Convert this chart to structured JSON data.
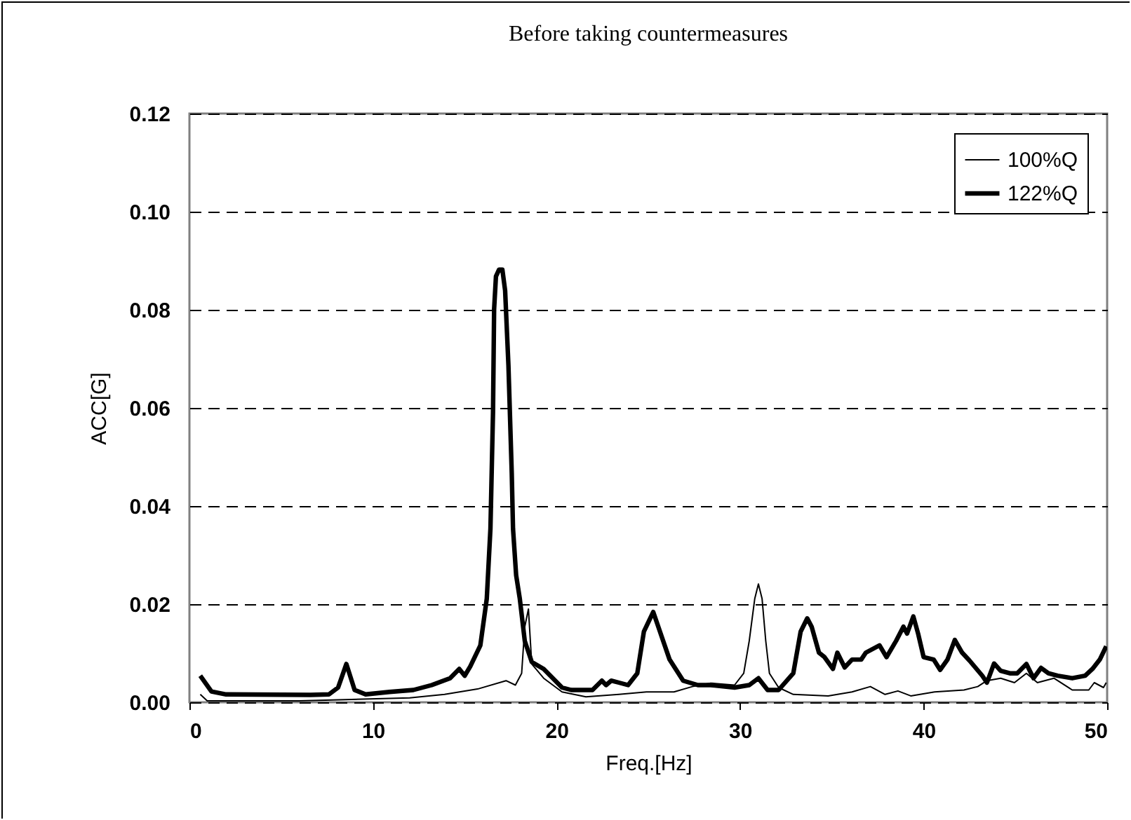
{
  "chart_data": {
    "type": "line",
    "title": "Before taking countermeasures",
    "xlabel": "Freq.[Hz]",
    "ylabel": "ACC[G]",
    "xlim": [
      0,
      50
    ],
    "xticks": [
      0,
      10,
      20,
      30,
      40,
      50
    ],
    "ylim": [
      0,
      0.12
    ],
    "yticks": [
      {
        "value": 0,
        "label": "0.00"
      },
      {
        "value": 0.02,
        "label": "0.02"
      },
      {
        "value": 0.04,
        "label": "0.04"
      },
      {
        "value": 0.06,
        "label": "0.06"
      },
      {
        "value": 0.08,
        "label": "0.08"
      },
      {
        "value": 0.1,
        "label": "0.10"
      },
      {
        "value": 0.12,
        "label": "0.12"
      }
    ],
    "grid": "y",
    "legend": "top right",
    "marker": "none",
    "line_style": "solid",
    "series": [
      {
        "name": "100%Q",
        "color": "#000000",
        "x": [
          0.59,
          0.97,
          6.0,
          12.0,
          13.9,
          15.7,
          17.25,
          17.76,
          18.1,
          18.27,
          18.47,
          18.65,
          19.3,
          20.3,
          21.6,
          23.4,
          24.9,
          26.4,
          27.4,
          28.4,
          29.7,
          30.2,
          30.5,
          30.8,
          31.0,
          31.2,
          31.4,
          31.6,
          32.1,
          32.9,
          34.8,
          36.1,
          37.1,
          37.9,
          38.6,
          39.3,
          40.6,
          42.2,
          42.95,
          43.45,
          44.2,
          44.95,
          45.6,
          46.2,
          47.1,
          48.1,
          49.0,
          49.3,
          49.8,
          49.95
        ],
        "values": [
          0.0016,
          0.0003,
          0.0003,
          0.0009,
          0.0016,
          0.0027,
          0.0044,
          0.0035,
          0.0059,
          0.0154,
          0.019,
          0.0078,
          0.0049,
          0.0021,
          0.0011,
          0.0016,
          0.0021,
          0.0021,
          0.0032,
          0.0039,
          0.0035,
          0.0059,
          0.0125,
          0.0211,
          0.0241,
          0.0211,
          0.0125,
          0.0059,
          0.003,
          0.0016,
          0.0013,
          0.0021,
          0.0032,
          0.0016,
          0.0023,
          0.0013,
          0.0021,
          0.0025,
          0.0032,
          0.0044,
          0.0049,
          0.004,
          0.0059,
          0.004,
          0.0049,
          0.0025,
          0.0025,
          0.004,
          0.003,
          0.004
        ]
      },
      {
        "name": "122%Q",
        "color": "#000000",
        "x": [
          0.59,
          1.2,
          2.0,
          6.6,
          7.6,
          8.1,
          8.55,
          9.0,
          9.6,
          10.9,
          12.2,
          13.2,
          14.2,
          14.7,
          15.0,
          15.3,
          15.85,
          16.2,
          16.4,
          16.54,
          16.6,
          16.7,
          16.87,
          17.05,
          17.2,
          17.38,
          17.56,
          17.63,
          17.8,
          18.0,
          18.27,
          18.65,
          19.3,
          19.8,
          20.3,
          20.8,
          21.96,
          22.47,
          22.7,
          22.98,
          23.4,
          23.9,
          24.4,
          24.76,
          25.27,
          26.16,
          26.9,
          27.7,
          28.4,
          29.7,
          30.5,
          31.0,
          31.5,
          32.1,
          32.9,
          33.3,
          33.66,
          33.9,
          34.3,
          34.6,
          35.06,
          35.3,
          35.7,
          36.1,
          36.6,
          36.85,
          37.6,
          37.98,
          38.5,
          38.9,
          39.1,
          39.44,
          39.7,
          40.0,
          40.55,
          40.9,
          41.3,
          41.7,
          42.1,
          42.5,
          43.2,
          43.45,
          43.84,
          44.2,
          44.7,
          45.1,
          45.6,
          45.99,
          46.4,
          46.8,
          47.3,
          48.1,
          48.8,
          49.2,
          49.6,
          49.95
        ],
        "values": [
          0.0054,
          0.0022,
          0.0016,
          0.0015,
          0.0016,
          0.003,
          0.0078,
          0.0025,
          0.0016,
          0.0021,
          0.0025,
          0.0035,
          0.0049,
          0.0068,
          0.0054,
          0.0073,
          0.0116,
          0.0211,
          0.0354,
          0.0591,
          0.0801,
          0.0868,
          0.0882,
          0.0882,
          0.0839,
          0.0687,
          0.0468,
          0.0354,
          0.0259,
          0.0211,
          0.0125,
          0.0082,
          0.0068,
          0.0049,
          0.003,
          0.0025,
          0.0025,
          0.0044,
          0.0035,
          0.0044,
          0.004,
          0.0035,
          0.0059,
          0.0144,
          0.0184,
          0.0087,
          0.0044,
          0.0035,
          0.0035,
          0.003,
          0.0035,
          0.0049,
          0.0025,
          0.0025,
          0.0059,
          0.0144,
          0.0171,
          0.0154,
          0.0101,
          0.0092,
          0.0068,
          0.0101,
          0.0071,
          0.0087,
          0.0087,
          0.0101,
          0.0116,
          0.0092,
          0.0125,
          0.0154,
          0.014,
          0.0175,
          0.014,
          0.0092,
          0.0087,
          0.0066,
          0.0087,
          0.0127,
          0.0101,
          0.0085,
          0.0054,
          0.004,
          0.0079,
          0.0064,
          0.0059,
          0.0059,
          0.0078,
          0.0049,
          0.007,
          0.0059,
          0.0054,
          0.0049,
          0.0054,
          0.0068,
          0.0087,
          0.0114
        ]
      }
    ]
  }
}
